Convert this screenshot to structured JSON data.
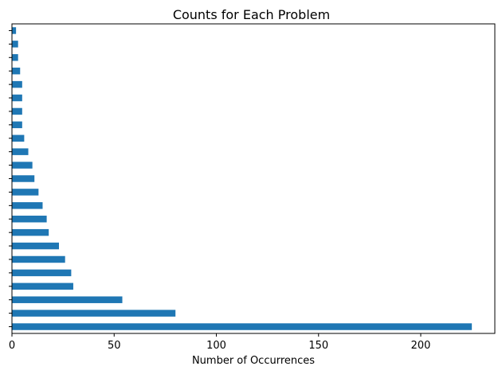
{
  "chart_data": {
    "type": "bar",
    "orientation": "horizontal",
    "title": "Counts for Each Problem",
    "xlabel": "Number of Occurrences",
    "ylabel": "",
    "xlim": [
      0,
      236.25
    ],
    "xticks": [
      0,
      50,
      100,
      150,
      200
    ],
    "xtick_labels": [
      "0",
      "50",
      "100",
      "150",
      "200"
    ],
    "grid": false,
    "legend": "none",
    "bar_color": "#1f77b4",
    "values": [
      225,
      80,
      54,
      30,
      29,
      26,
      23,
      18,
      17,
      15,
      13,
      11,
      10,
      8,
      6,
      5,
      5,
      5,
      5,
      4,
      3,
      3,
      2
    ]
  }
}
